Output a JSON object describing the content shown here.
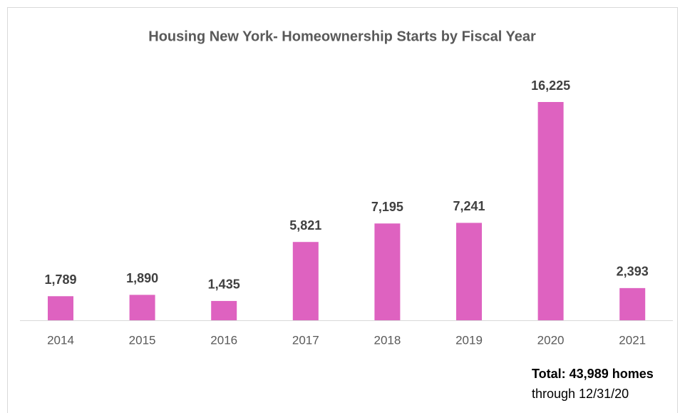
{
  "chart_data": {
    "type": "bar",
    "title": "Housing New York- Homeownership Starts by Fiscal Year",
    "categories": [
      "2014",
      "2015",
      "2016",
      "2017",
      "2018",
      "2019",
      "2020",
      "2021"
    ],
    "values": [
      1789,
      1890,
      1435,
      5821,
      7195,
      7241,
      16225,
      2393
    ],
    "value_labels": [
      "1,789",
      "1,890",
      "1,435",
      "5,821",
      "7,195",
      "7,241",
      "16,225",
      "2,393"
    ],
    "color": "#de62c0",
    "annotations": [
      "Total: 43,989 homes",
      "through 12/31/20"
    ]
  }
}
